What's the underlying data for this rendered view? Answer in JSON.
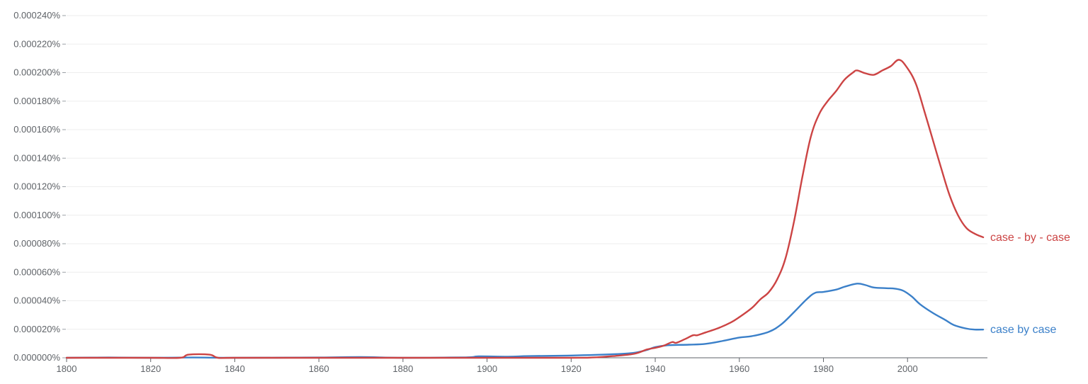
{
  "chart_data": {
    "type": "line",
    "title": "",
    "xlabel": "",
    "ylabel": "",
    "xlim": [
      1800,
      2019
    ],
    "ylim": [
      0,
      0.00024
    ],
    "x_ticks": [
      "1800",
      "1820",
      "1840",
      "1860",
      "1880",
      "1900",
      "1920",
      "1940",
      "1960",
      "1980",
      "2000"
    ],
    "x_tick_values": [
      1800,
      1820,
      1840,
      1860,
      1880,
      1900,
      1920,
      1940,
      1960,
      1980,
      2000
    ],
    "y_ticks": [
      "0.000000%",
      "0.000020%",
      "0.000040%",
      "0.000060%",
      "0.000080%",
      "0.000100%",
      "0.000120%",
      "0.000140%",
      "0.000160%",
      "0.000180%",
      "0.000200%",
      "0.000220%",
      "0.000240%"
    ],
    "y_tick_values": [
      0,
      2e-05,
      4e-05,
      6e-05,
      8e-05,
      0.0001,
      0.00012,
      0.00014,
      0.00016,
      0.00018,
      0.0002,
      0.00022,
      0.00024
    ],
    "grid": true,
    "legend": "inline labels at line ends (right)",
    "series": [
      {
        "name": "case - by - case",
        "color": "#cc4444",
        "points": [
          [
            1800,
            0
          ],
          [
            1810,
            0
          ],
          [
            1820,
            0
          ],
          [
            1827,
            0
          ],
          [
            1829,
            2.2e-06
          ],
          [
            1834,
            2.2e-06
          ],
          [
            1836,
            0
          ],
          [
            1840,
            0
          ],
          [
            1860,
            0
          ],
          [
            1880,
            0
          ],
          [
            1900,
            0
          ],
          [
            1920,
            0
          ],
          [
            1925,
            2e-07
          ],
          [
            1930,
            1.2e-06
          ],
          [
            1935,
            2.8e-06
          ],
          [
            1938,
            5.8e-06
          ],
          [
            1940,
            7e-06
          ],
          [
            1942,
            8.5e-06
          ],
          [
            1944,
            1.1e-05
          ],
          [
            1945,
            1.05e-05
          ],
          [
            1947,
            1.3e-05
          ],
          [
            1949,
            1.58e-05
          ],
          [
            1950,
            1.58e-05
          ],
          [
            1952,
            1.78e-05
          ],
          [
            1955,
            2.08e-05
          ],
          [
            1958,
            2.48e-05
          ],
          [
            1960,
            2.85e-05
          ],
          [
            1963,
            3.5e-05
          ],
          [
            1965,
            4.1e-05
          ],
          [
            1967,
            4.6e-05
          ],
          [
            1969,
            5.5e-05
          ],
          [
            1971,
            7e-05
          ],
          [
            1973,
            9.55e-05
          ],
          [
            1975,
            0.000127
          ],
          [
            1977,
            0.000155
          ],
          [
            1979,
            0.000171
          ],
          [
            1981,
            0.00018
          ],
          [
            1983,
            0.000187
          ],
          [
            1985,
            0.000195
          ],
          [
            1987,
            0.0002
          ],
          [
            1988,
            0.0002015
          ],
          [
            1990,
            0.0001995
          ],
          [
            1992,
            0.0001985
          ],
          [
            1994,
            0.0002015
          ],
          [
            1996,
            0.0002045
          ],
          [
            1998,
            0.000209
          ],
          [
            2000,
            0.000203
          ],
          [
            2002,
            0.000192
          ],
          [
            2004,
            0.000173
          ],
          [
            2006,
            0.000153
          ],
          [
            2008,
            0.000133
          ],
          [
            2010,
            0.000114
          ],
          [
            2012,
            0.0001
          ],
          [
            2014,
            9.1e-05
          ],
          [
            2016,
            8.7e-05
          ],
          [
            2018,
            8.45e-05
          ]
        ]
      },
      {
        "name": "case by case",
        "color": "#3b80c9",
        "points": [
          [
            1800,
            0
          ],
          [
            1810,
            2e-07
          ],
          [
            1820,
            0
          ],
          [
            1830,
            2e-07
          ],
          [
            1840,
            0
          ],
          [
            1860,
            2e-07
          ],
          [
            1870,
            5e-07
          ],
          [
            1880,
            0
          ],
          [
            1895,
            3e-07
          ],
          [
            1898,
            1e-06
          ],
          [
            1905,
            8e-07
          ],
          [
            1910,
            1.2e-06
          ],
          [
            1920,
            1.6e-06
          ],
          [
            1930,
            2.5e-06
          ],
          [
            1935,
            3.5e-06
          ],
          [
            1938,
            5.5e-06
          ],
          [
            1940,
            7.5e-06
          ],
          [
            1943,
            8.8e-06
          ],
          [
            1948,
            9.2e-06
          ],
          [
            1952,
            9.8e-06
          ],
          [
            1956,
            1.18e-05
          ],
          [
            1960,
            1.42e-05
          ],
          [
            1963,
            1.52e-05
          ],
          [
            1967,
            1.82e-05
          ],
          [
            1970,
            2.35e-05
          ],
          [
            1973,
            3.2e-05
          ],
          [
            1976,
            4.1e-05
          ],
          [
            1978,
            4.55e-05
          ],
          [
            1980,
            4.62e-05
          ],
          [
            1983,
            4.78e-05
          ],
          [
            1985,
            4.98e-05
          ],
          [
            1988,
            5.2e-05
          ],
          [
            1990,
            5.1e-05
          ],
          [
            1992,
            4.93e-05
          ],
          [
            1995,
            4.88e-05
          ],
          [
            1997,
            4.85e-05
          ],
          [
            1999,
            4.7e-05
          ],
          [
            2001,
            4.3e-05
          ],
          [
            2003,
            3.75e-05
          ],
          [
            2006,
            3.15e-05
          ],
          [
            2009,
            2.65e-05
          ],
          [
            2011,
            2.3e-05
          ],
          [
            2014,
            2.05e-05
          ],
          [
            2016,
            1.98e-05
          ],
          [
            2018,
            1.98e-05
          ]
        ]
      }
    ]
  }
}
